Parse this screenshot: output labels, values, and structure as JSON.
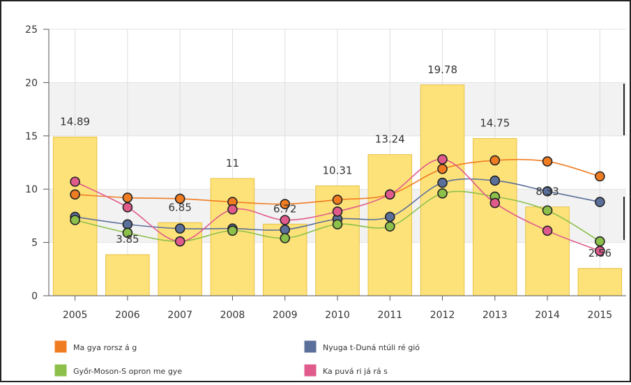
{
  "chart_data": {
    "type": "bar",
    "categories": [
      "2005",
      "2006",
      "2007",
      "2008",
      "2009",
      "2010",
      "2011",
      "2012",
      "2013",
      "2014",
      "2015"
    ],
    "values": [
      14.89,
      3.85,
      6.85,
      11,
      6.72,
      10.31,
      13.24,
      19.78,
      14.75,
      8.33,
      2.56
    ],
    "value_labels": [
      "14.89",
      "3.85",
      "6.85",
      "11",
      "6.72",
      "10.31",
      "13.24",
      "19.78",
      "14.75",
      "8.33",
      "2.56"
    ],
    "bar_color": "#fde27a",
    "bar_stroke": "#e8c040",
    "ylim": [
      0,
      25
    ],
    "yticks": [
      "0",
      "5",
      "10",
      "15",
      "20",
      "25"
    ],
    "grid": true,
    "legend_position": "bottom",
    "line_series": [
      {
        "name": "Ma gya rorsz á g",
        "color": "#f07c22",
        "values": [
          9.5,
          9.2,
          9.1,
          8.8,
          8.6,
          9.0,
          9.5,
          11.9,
          12.7,
          12.6,
          11.2
        ]
      },
      {
        "name": "Nyuga t-Duná ntúli ré gió",
        "color": "#5a6f9a",
        "values": [
          7.4,
          6.7,
          6.3,
          6.3,
          6.2,
          7.2,
          7.4,
          10.6,
          10.8,
          9.8,
          8.8
        ]
      },
      {
        "name": "Győr-Moson-S opron me gye",
        "color": "#8cc04a",
        "values": [
          7.1,
          5.9,
          5.1,
          6.1,
          5.4,
          6.7,
          6.5,
          9.6,
          9.3,
          8.0,
          5.1
        ]
      },
      {
        "name": "Ka puvá ri já rá s",
        "color": "#e05a8c",
        "values": [
          10.7,
          8.3,
          5.1,
          8.1,
          7.1,
          7.9,
          9.5,
          12.8,
          8.7,
          6.1,
          4.2
        ]
      }
    ]
  }
}
